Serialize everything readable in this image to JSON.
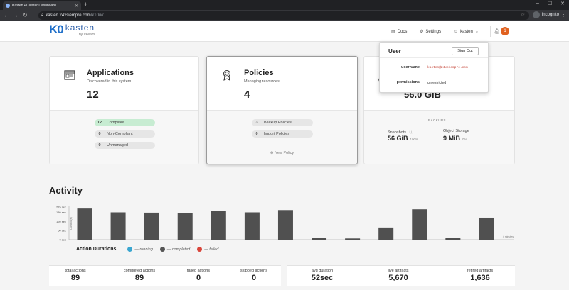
{
  "browser": {
    "tab_title": "Kasten • Cluster Dashboard",
    "url_host": "kasten.24xsiempre.com",
    "url_path": "/k10/#/",
    "profile_label": "Incognito"
  },
  "header": {
    "logo_mark": "K0",
    "logo_name": "kasten",
    "logo_by": "by Veeam",
    "docs_label": "Docs",
    "settings_label": "Settings",
    "user_label": "kasten",
    "notifications_count": "1"
  },
  "cards": {
    "applications": {
      "title": "Applications",
      "subtitle": "Discovered in this system",
      "count": "12",
      "pills": [
        {
          "n": "12",
          "label": "Compliant"
        },
        {
          "n": "0",
          "label": "Non-Compliant"
        },
        {
          "n": "0",
          "label": "Unmanaged"
        }
      ]
    },
    "policies": {
      "title": "Policies",
      "subtitle": "Managing resources",
      "count": "4",
      "pills": [
        {
          "n": "3",
          "label": "Backup Policies"
        },
        {
          "n": "0",
          "label": "Import Policies"
        }
      ],
      "new_policy": "New Policy"
    },
    "data": {
      "partial_letter": "C",
      "big_value": "56.0 GiB",
      "section_label": "BACKUPS",
      "snapshots_label": "Snapshots",
      "snapshots_value": "56 GiB",
      "snapshots_pct": "100%",
      "object_storage_label": "Object Storage",
      "object_storage_value": "9 MiB",
      "object_storage_pct": "0%"
    }
  },
  "user_dropdown": {
    "title": "User",
    "sign_out": "Sign Out",
    "username_label": "username",
    "username_value": "kasten@24xsiempre.com",
    "permissions_label": "permissions",
    "permissions_value": "unrestricted"
  },
  "activity": {
    "title": "Activity",
    "legend_title": "Action Durations",
    "legend": [
      {
        "label": "— running",
        "color": "#3aa6d0"
      },
      {
        "label": "— completed",
        "color": "#555555"
      },
      {
        "label": "— failed",
        "color": "#d9453a"
      }
    ]
  },
  "chart_data": {
    "type": "bar",
    "ylabel": "Duration(s)",
    "yticks": [
      "215 sec",
      "180 sec",
      "120 sec",
      "60 sec",
      "0 sec"
    ],
    "ytick_values": [
      215,
      180,
      120,
      60,
      0
    ],
    "ylim": [
      0,
      215
    ],
    "values": [
      205,
      180,
      178,
      175,
      190,
      180,
      195,
      10,
      8,
      80,
      200,
      12,
      145
    ],
    "last_label": "4 minutes",
    "color": "#505050"
  },
  "totals": {
    "left": [
      {
        "label": "total actions",
        "value": "89"
      },
      {
        "label": "completed actions",
        "value": "89"
      },
      {
        "label": "failed actions",
        "value": "0"
      },
      {
        "label": "skipped actions",
        "value": "0"
      }
    ],
    "right": [
      {
        "label": "avg duration",
        "value": "52sec"
      },
      {
        "label": "live artifacts",
        "value": "5,670"
      },
      {
        "label": "retired artifacts",
        "value": "1,636"
      }
    ]
  }
}
